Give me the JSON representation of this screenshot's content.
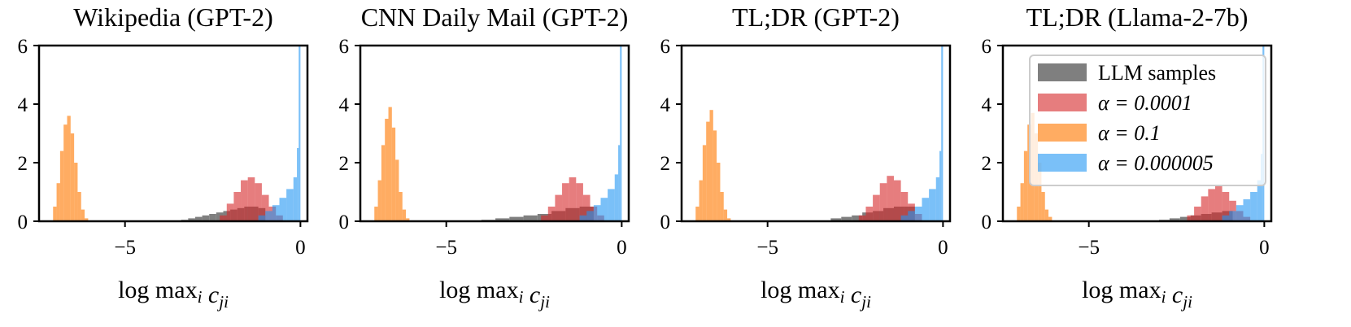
{
  "figure": {
    "legend_location": "top-right",
    "legend_in_panel": 4
  },
  "chart_data": [
    {
      "type": "histogram",
      "title": "Wikipedia (GPT-2)",
      "xlabel": "log max_i c_ji",
      "xlim": [
        -7.45,
        0.2
      ],
      "ylim": [
        0,
        6
      ],
      "xticks": [
        -5,
        0
      ],
      "xtick_labels": [
        "−5",
        "0"
      ],
      "yticks": [
        0,
        2,
        4,
        6
      ],
      "ytick_labels": [
        "0",
        "2",
        "4",
        "6"
      ],
      "series": [
        {
          "name": "LLM samples",
          "color": "#7f7f7f",
          "opacity": 1.0,
          "bins": [
            [
              -3.4,
              -3.2,
              0.05
            ],
            [
              -3.2,
              -3.0,
              0.1
            ],
            [
              -3.0,
              -2.8,
              0.15
            ],
            [
              -2.8,
              -2.6,
              0.2
            ],
            [
              -2.6,
              -2.4,
              0.25
            ],
            [
              -2.4,
              -2.2,
              0.3
            ],
            [
              -2.2,
              -2.0,
              0.35
            ],
            [
              -2.0,
              -1.8,
              0.4
            ],
            [
              -1.8,
              -1.6,
              0.45
            ],
            [
              -1.6,
              -1.4,
              0.5
            ],
            [
              -1.4,
              -1.2,
              0.5
            ],
            [
              -1.2,
              -1.0,
              0.45
            ]
          ]
        },
        {
          "name": "α = 0.0001",
          "color": "#d62728",
          "opacity": 0.6,
          "bins": [
            [
              -2.3,
              -2.1,
              0.2
            ],
            [
              -2.1,
              -1.9,
              0.6
            ],
            [
              -1.9,
              -1.7,
              1.0
            ],
            [
              -1.7,
              -1.5,
              1.4
            ],
            [
              -1.5,
              -1.3,
              1.5
            ],
            [
              -1.3,
              -1.1,
              1.3
            ],
            [
              -1.1,
              -0.9,
              0.9
            ],
            [
              -0.9,
              -0.7,
              0.5
            ],
            [
              -0.7,
              -0.5,
              0.2
            ]
          ]
        },
        {
          "name": "α = 0.1",
          "color": "#ff7f0e",
          "opacity": 0.65,
          "bins": [
            [
              -7.05,
              -6.95,
              0.5
            ],
            [
              -6.95,
              -6.85,
              1.3
            ],
            [
              -6.85,
              -6.75,
              2.4
            ],
            [
              -6.75,
              -6.65,
              3.3
            ],
            [
              -6.65,
              -6.55,
              3.6
            ],
            [
              -6.55,
              -6.45,
              3.0
            ],
            [
              -6.45,
              -6.35,
              2.0
            ],
            [
              -6.35,
              -6.25,
              1.0
            ],
            [
              -6.25,
              -6.15,
              0.4
            ],
            [
              -6.15,
              -6.05,
              0.1
            ]
          ]
        },
        {
          "name": "α = 0.000005",
          "color": "#2196f3",
          "opacity": 0.6,
          "bins": [
            [
              -1.2,
              -1.0,
              0.2
            ],
            [
              -1.0,
              -0.8,
              0.35
            ],
            [
              -0.8,
              -0.6,
              0.55
            ],
            [
              -0.6,
              -0.4,
              0.8
            ],
            [
              -0.4,
              -0.2,
              1.1
            ],
            [
              -0.2,
              -0.1,
              1.5
            ],
            [
              -0.1,
              -0.05,
              2.5
            ],
            [
              -0.05,
              0.0,
              6.0
            ]
          ]
        }
      ]
    },
    {
      "type": "histogram",
      "title": "CNN Daily Mail (GPT-2)",
      "xlabel": "log max_i c_ji",
      "xlim": [
        -7.45,
        0.2
      ],
      "ylim": [
        0,
        6
      ],
      "xticks": [
        -5,
        0
      ],
      "xtick_labels": [
        "−5",
        "0"
      ],
      "yticks": [
        0,
        2,
        4,
        6
      ],
      "ytick_labels": [
        "0",
        "2",
        "4",
        "6"
      ],
      "series": [
        {
          "name": "LLM samples",
          "color": "#7f7f7f",
          "opacity": 1.0,
          "bins": [
            [
              -4.0,
              -3.6,
              0.05
            ],
            [
              -3.6,
              -3.2,
              0.1
            ],
            [
              -3.2,
              -2.8,
              0.15
            ],
            [
              -2.8,
              -2.4,
              0.2
            ],
            [
              -2.4,
              -2.0,
              0.25
            ],
            [
              -2.0,
              -1.6,
              0.35
            ],
            [
              -1.6,
              -1.2,
              0.45
            ],
            [
              -1.2,
              -0.8,
              0.5
            ]
          ]
        },
        {
          "name": "α = 0.0001",
          "color": "#d62728",
          "opacity": 0.6,
          "bins": [
            [
              -2.3,
              -2.1,
              0.2
            ],
            [
              -2.1,
              -1.9,
              0.5
            ],
            [
              -1.9,
              -1.7,
              0.9
            ],
            [
              -1.7,
              -1.5,
              1.3
            ],
            [
              -1.5,
              -1.3,
              1.5
            ],
            [
              -1.3,
              -1.1,
              1.3
            ],
            [
              -1.1,
              -0.9,
              0.9
            ],
            [
              -0.9,
              -0.7,
              0.5
            ],
            [
              -0.7,
              -0.5,
              0.2
            ]
          ]
        },
        {
          "name": "α = 0.1",
          "color": "#ff7f0e",
          "opacity": 0.65,
          "bins": [
            [
              -7.05,
              -6.95,
              0.5
            ],
            [
              -6.95,
              -6.85,
              1.4
            ],
            [
              -6.85,
              -6.75,
              2.6
            ],
            [
              -6.75,
              -6.65,
              3.5
            ],
            [
              -6.65,
              -6.55,
              3.9
            ],
            [
              -6.55,
              -6.45,
              3.2
            ],
            [
              -6.45,
              -6.35,
              2.1
            ],
            [
              -6.35,
              -6.25,
              1.0
            ],
            [
              -6.25,
              -6.15,
              0.4
            ],
            [
              -6.15,
              -6.05,
              0.1
            ]
          ]
        },
        {
          "name": "α = 0.000005",
          "color": "#2196f3",
          "opacity": 0.6,
          "bins": [
            [
              -1.2,
              -1.0,
              0.2
            ],
            [
              -1.0,
              -0.8,
              0.35
            ],
            [
              -0.8,
              -0.6,
              0.55
            ],
            [
              -0.6,
              -0.4,
              0.8
            ],
            [
              -0.4,
              -0.2,
              1.1
            ],
            [
              -0.2,
              -0.1,
              1.6
            ],
            [
              -0.1,
              -0.05,
              2.6
            ],
            [
              -0.05,
              0.0,
              6.0
            ]
          ]
        }
      ]
    },
    {
      "type": "histogram",
      "title": "TL;DR (GPT-2)",
      "xlabel": "log max_i c_ji",
      "xlim": [
        -7.45,
        0.2
      ],
      "ylim": [
        0,
        6
      ],
      "xticks": [
        -5,
        0
      ],
      "xtick_labels": [
        "−5",
        "0"
      ],
      "yticks": [
        0,
        2,
        4,
        6
      ],
      "ytick_labels": [
        "0",
        "2",
        "4",
        "6"
      ],
      "series": [
        {
          "name": "LLM samples",
          "color": "#7f7f7f",
          "opacity": 1.0,
          "bins": [
            [
              -3.2,
              -2.9,
              0.1
            ],
            [
              -2.9,
              -2.6,
              0.15
            ],
            [
              -2.6,
              -2.3,
              0.2
            ],
            [
              -2.3,
              -2.0,
              0.3
            ],
            [
              -2.0,
              -1.7,
              0.35
            ],
            [
              -1.7,
              -1.4,
              0.45
            ],
            [
              -1.4,
              -1.1,
              0.5
            ],
            [
              -1.1,
              -0.8,
              0.5
            ]
          ]
        },
        {
          "name": "α = 0.0001",
          "color": "#d62728",
          "opacity": 0.6,
          "bins": [
            [
              -2.4,
              -2.2,
              0.2
            ],
            [
              -2.2,
              -2.0,
              0.5
            ],
            [
              -2.0,
              -1.8,
              0.9
            ],
            [
              -1.8,
              -1.6,
              1.3
            ],
            [
              -1.6,
              -1.4,
              1.55
            ],
            [
              -1.4,
              -1.2,
              1.4
            ],
            [
              -1.2,
              -1.0,
              1.0
            ],
            [
              -1.0,
              -0.8,
              0.6
            ],
            [
              -0.8,
              -0.6,
              0.25
            ]
          ]
        },
        {
          "name": "α = 0.1",
          "color": "#ff7f0e",
          "opacity": 0.65,
          "bins": [
            [
              -7.05,
              -6.95,
              0.5
            ],
            [
              -6.95,
              -6.85,
              1.4
            ],
            [
              -6.85,
              -6.75,
              2.6
            ],
            [
              -6.75,
              -6.65,
              3.4
            ],
            [
              -6.65,
              -6.55,
              3.8
            ],
            [
              -6.55,
              -6.45,
              3.1
            ],
            [
              -6.45,
              -6.35,
              2.0
            ],
            [
              -6.35,
              -6.25,
              1.0
            ],
            [
              -6.25,
              -6.15,
              0.4
            ],
            [
              -6.15,
              -6.05,
              0.1
            ]
          ]
        },
        {
          "name": "α = 0.000005",
          "color": "#2196f3",
          "opacity": 0.6,
          "bins": [
            [
              -1.2,
              -1.0,
              0.2
            ],
            [
              -1.0,
              -0.8,
              0.35
            ],
            [
              -0.8,
              -0.6,
              0.5
            ],
            [
              -0.6,
              -0.4,
              0.8
            ],
            [
              -0.4,
              -0.2,
              1.1
            ],
            [
              -0.2,
              -0.1,
              1.5
            ],
            [
              -0.1,
              -0.05,
              2.4
            ],
            [
              -0.05,
              0.0,
              6.0
            ]
          ]
        }
      ]
    },
    {
      "type": "histogram",
      "title": "TL;DR (Llama-2-7b)",
      "xlabel": "log max_i c_ji",
      "xlim": [
        -7.45,
        0.2
      ],
      "ylim": [
        0,
        6
      ],
      "xticks": [
        -5,
        0
      ],
      "xtick_labels": [
        "−5",
        "0"
      ],
      "yticks": [
        0,
        2,
        4,
        6
      ],
      "ytick_labels": [
        "0",
        "2",
        "4",
        "6"
      ],
      "legend": {
        "location": "top-right",
        "entries": [
          "LLM samples",
          "α = 0.0001",
          "α = 0.1",
          "α = 0.000005"
        ]
      },
      "series": [
        {
          "name": "LLM samples",
          "color": "#7f7f7f",
          "opacity": 1.0,
          "bins": [
            [
              -3.0,
              -2.7,
              0.05
            ],
            [
              -2.7,
              -2.4,
              0.1
            ],
            [
              -2.4,
              -2.1,
              0.15
            ],
            [
              -2.1,
              -1.8,
              0.2
            ],
            [
              -1.8,
              -1.5,
              0.25
            ],
            [
              -1.5,
              -1.2,
              0.3
            ],
            [
              -1.2,
              -0.9,
              0.35
            ]
          ]
        },
        {
          "name": "α = 0.0001",
          "color": "#d62728",
          "opacity": 0.6,
          "bins": [
            [
              -2.2,
              -2.0,
              0.2
            ],
            [
              -2.0,
              -1.8,
              0.5
            ],
            [
              -1.8,
              -1.6,
              0.85
            ],
            [
              -1.6,
              -1.4,
              1.1
            ],
            [
              -1.4,
              -1.2,
              1.2
            ],
            [
              -1.2,
              -1.0,
              1.0
            ],
            [
              -1.0,
              -0.8,
              0.7
            ],
            [
              -0.8,
              -0.6,
              0.35
            ],
            [
              -0.6,
              -0.4,
              0.15
            ]
          ]
        },
        {
          "name": "α = 0.1",
          "color": "#ff7f0e",
          "opacity": 0.65,
          "bins": [
            [
              -7.05,
              -6.95,
              0.5
            ],
            [
              -6.95,
              -6.85,
              1.3
            ],
            [
              -6.85,
              -6.75,
              2.4
            ],
            [
              -6.75,
              -6.65,
              3.3
            ],
            [
              -6.65,
              -6.55,
              3.7
            ],
            [
              -6.55,
              -6.45,
              3.0
            ],
            [
              -6.45,
              -6.35,
              2.0
            ],
            [
              -6.35,
              -6.25,
              1.0
            ],
            [
              -6.25,
              -6.15,
              0.4
            ],
            [
              -6.15,
              -6.05,
              0.15
            ]
          ]
        },
        {
          "name": "α = 0.000005",
          "color": "#2196f3",
          "opacity": 0.6,
          "bins": [
            [
              -1.2,
              -1.0,
              0.2
            ],
            [
              -1.0,
              -0.8,
              0.35
            ],
            [
              -0.8,
              -0.6,
              0.55
            ],
            [
              -0.6,
              -0.4,
              0.75
            ],
            [
              -0.4,
              -0.2,
              1.0
            ],
            [
              -0.2,
              -0.1,
              1.4
            ],
            [
              -0.1,
              -0.05,
              2.3
            ],
            [
              -0.05,
              0.0,
              6.0
            ]
          ]
        }
      ]
    }
  ]
}
